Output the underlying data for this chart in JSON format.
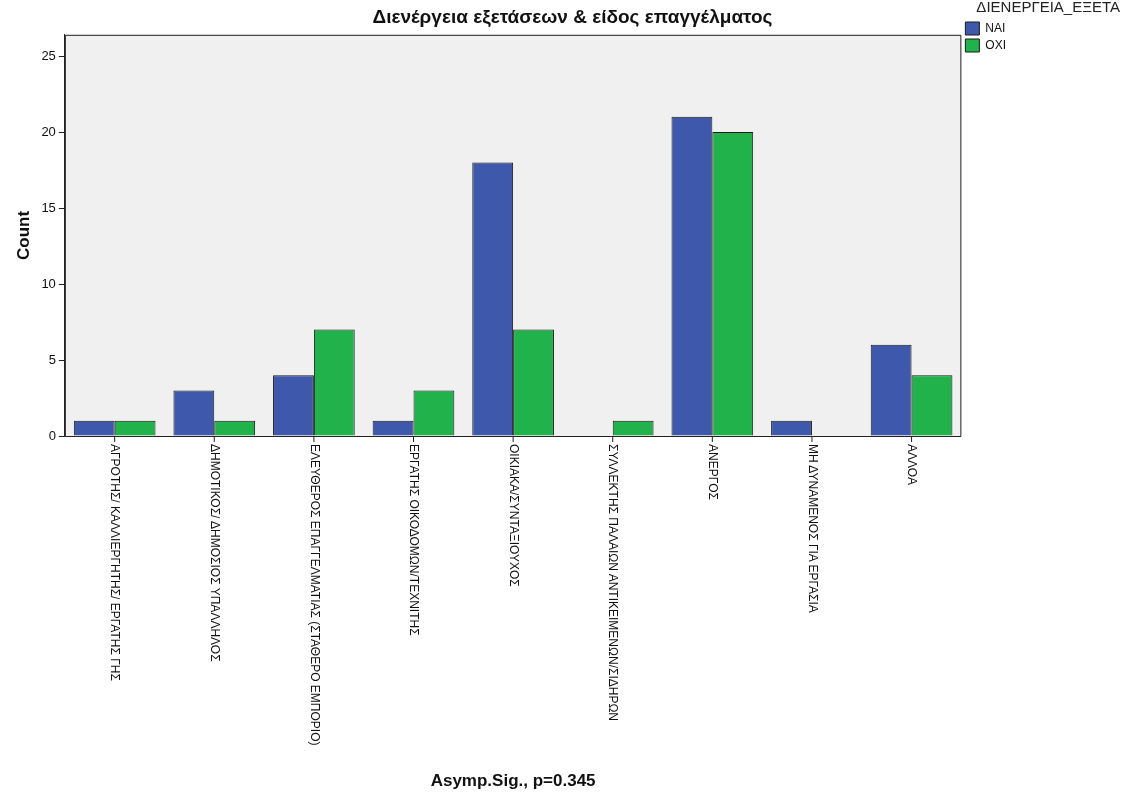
{
  "chart_data": {
    "type": "bar",
    "title": "Διενέργεια εξετάσεων & είδος επαγγέλματος",
    "xlabel": "Asymp.Sig., p=0.345",
    "ylabel": "Count",
    "legend_title": "ΔΙΕΝΕΡΓΕΙΑ_ΕΞΕΤΑ",
    "categories": [
      "ΑΓΡΟΤΗΣ/ ΚΑΛΛΙΕΡΓΗΤΗΣ/ ΕΡΓΑΤΗΣ ΓΗΣ",
      "ΔΗΜΟΤΙΚΟΣ/ ΔΗΜΟΣΙΟΣ ΥΠΑΛΛΗΛΟΣ",
      "ΕΛΕΥΘΕΡΟΣ ΕΠΑΓΓΕΛΜΑΤΙΑΣ (ΣΤΑΘΕΡΟ ΕΜΠΟΡΙΟ)",
      "ΕΡΓΑΤΗΣ ΟΙΚΟΔΟΜΩΝ/ΤΕΧΝΙΤΗΣ",
      "ΟΙΚΙΑΚΑ/ΣΥΝΤΑΞΙΟΥΧΟΣ",
      "ΣΥΛΛΕΚΤΗΣ ΠΑΛΑΙΩΝ ΑΝΤΙΚΕΙΜΕΝΩΝ/ΣΙΔΗΡΩΝ",
      "ΑΝΕΡΓΟΣ",
      "ΜΗ ΔΥΝΑΜΕΝΟΣ ΓΙΑ ΕΡΓΑΣΙΑ",
      "ΑΛΛΟΑ"
    ],
    "series": [
      {
        "name": "ΝΑΙ",
        "color": "#3e58ac",
        "values": [
          1,
          3,
          4,
          1,
          18,
          0,
          21,
          1,
          6
        ]
      },
      {
        "name": "ΟΧΙ",
        "color": "#21b24b",
        "values": [
          1,
          1,
          7,
          3,
          7,
          1,
          20,
          0,
          4
        ]
      }
    ],
    "ylim": [
      0,
      26.4
    ],
    "yticks": [
      0,
      5,
      10,
      15,
      20,
      25
    ],
    "grid": false,
    "legend": "right"
  }
}
